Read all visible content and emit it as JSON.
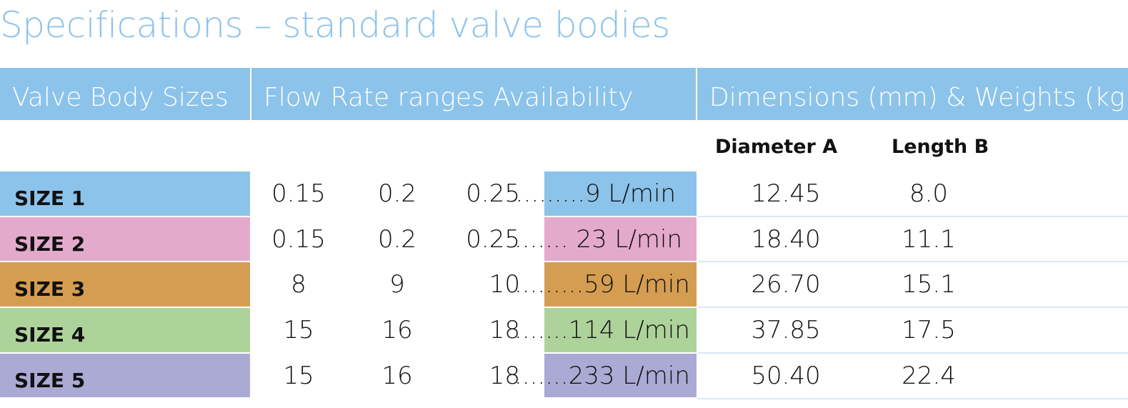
{
  "title": "Specifications – standard valve bodies",
  "header": [
    "Valve Body Sizes",
    "Flow Rate ranges Availability",
    "Dimensions (mm) & Weights (kg)"
  ],
  "subheader": [
    "Diameter A",
    "Length B"
  ],
  "rows": [
    {
      "label": "SIZE 1",
      "color": "#8cc3ea",
      "flow": [
        "0.15",
        "0.2",
        "0.25"
      ],
      "range": ".........9 L/min",
      "diameter": "12.45",
      "length": "8.0"
    },
    {
      "label": "SIZE 2",
      "color": "#e4aacb",
      "flow": [
        "0.15",
        "0.2",
        "0.25"
      ],
      "range": "....... 23 L/min",
      "diameter": "18.40",
      "length": "11.1"
    },
    {
      "label": "SIZE 3",
      "color": "#d59d52",
      "flow": [
        "8",
        "9",
        "10"
      ],
      "range": ".........59 L/min",
      "diameter": "26.70",
      "length": "15.1"
    },
    {
      "label": "SIZE 4",
      "color": "#aed39a",
      "flow": [
        "15",
        "16",
        "18"
      ],
      "range": ".......114 L/min",
      "diameter": "37.85",
      "length": "17.5"
    },
    {
      "label": "SIZE 5",
      "color": "#abaad4",
      "flow": [
        "15",
        "16",
        "18"
      ],
      "range": ".......233 L/min",
      "diameter": "50.40",
      "length": "22.4"
    }
  ]
}
